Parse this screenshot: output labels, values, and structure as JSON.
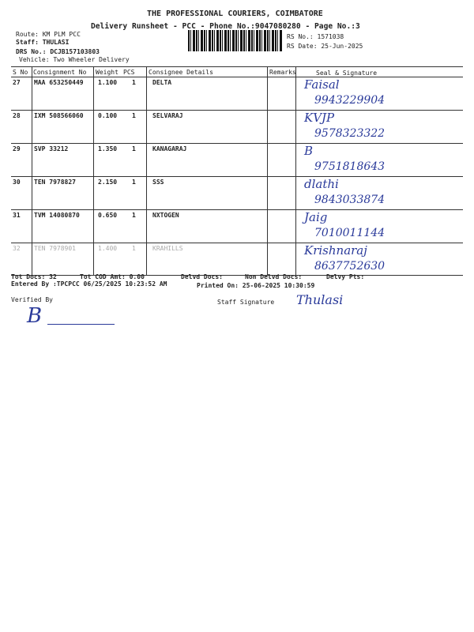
{
  "header": {
    "company": "THE PROFESSIONAL COURIERS, COIMBATORE",
    "subtitle": "Delivery Runsheet - PCC - Phone No.:9047080280 - Page No.:3",
    "route": "Route: KM PLM PCC",
    "staff": "Staff: THULASI",
    "drs_no": "DRS No.: DCJB157103803",
    "vehicle": "Vehicle: Two Wheeler Delivery",
    "rs_no": "RS No.: 1571038",
    "rs_date": "RS Date: 25-Jun-2025"
  },
  "table": {
    "columns": [
      "S No",
      "Consignment No",
      "Weight",
      "PCS",
      "Consignee Details",
      "Remarks",
      "Seal & Signature"
    ],
    "rows": [
      {
        "sno": "27",
        "consignment": "MAA 653250449",
        "weight": "1.100",
        "pcs": "1",
        "consignee": "DELTA",
        "sign": "Faisal",
        "phone": "9943229904"
      },
      {
        "sno": "28",
        "consignment": "IXM 508566060",
        "weight": "0.100",
        "pcs": "1",
        "consignee": "SELVARAJ",
        "sign": "KVJP",
        "phone": "9578323322"
      },
      {
        "sno": "29",
        "consignment": "SVP 33212",
        "weight": "1.350",
        "pcs": "1",
        "consignee": "KANAGARAJ",
        "sign": "B",
        "phone": "9751818643"
      },
      {
        "sno": "30",
        "consignment": "TEN 7978827",
        "weight": "2.150",
        "pcs": "1",
        "consignee": "SSS",
        "sign": "dlathi",
        "phone": "9843033874"
      },
      {
        "sno": "31",
        "consignment": "TVM 14080870",
        "weight": "0.650",
        "pcs": "1",
        "consignee": "NXTOGEN",
        "sign": "Jaig",
        "phone": "7010011144"
      },
      {
        "sno": "32",
        "consignment": "TEN 7978901",
        "weight": "1.400",
        "pcs": "1",
        "consignee": "KRAHILLS",
        "sign": "Krishnaraj",
        "phone": "8637752630"
      }
    ]
  },
  "footer": {
    "tot_docs": "Tot Docs:  32",
    "tot_cod": "Tot COD Amt:    0.00",
    "delvd_docs": "Delvd Docs:",
    "non_delvd_docs": "Non Delvd Docs:",
    "delvy_pts": "Delvy Pts:",
    "entered_by": "Entered By :TPCPCC 06/25/2025 10:23:52 AM",
    "printed_on": "Printed On: 25-06-2025 10:30:59",
    "verified_by": "Verified By",
    "staff_signature": "Staff Signature",
    "verifier_sign": "B",
    "staff_sign": "Thulasi"
  }
}
